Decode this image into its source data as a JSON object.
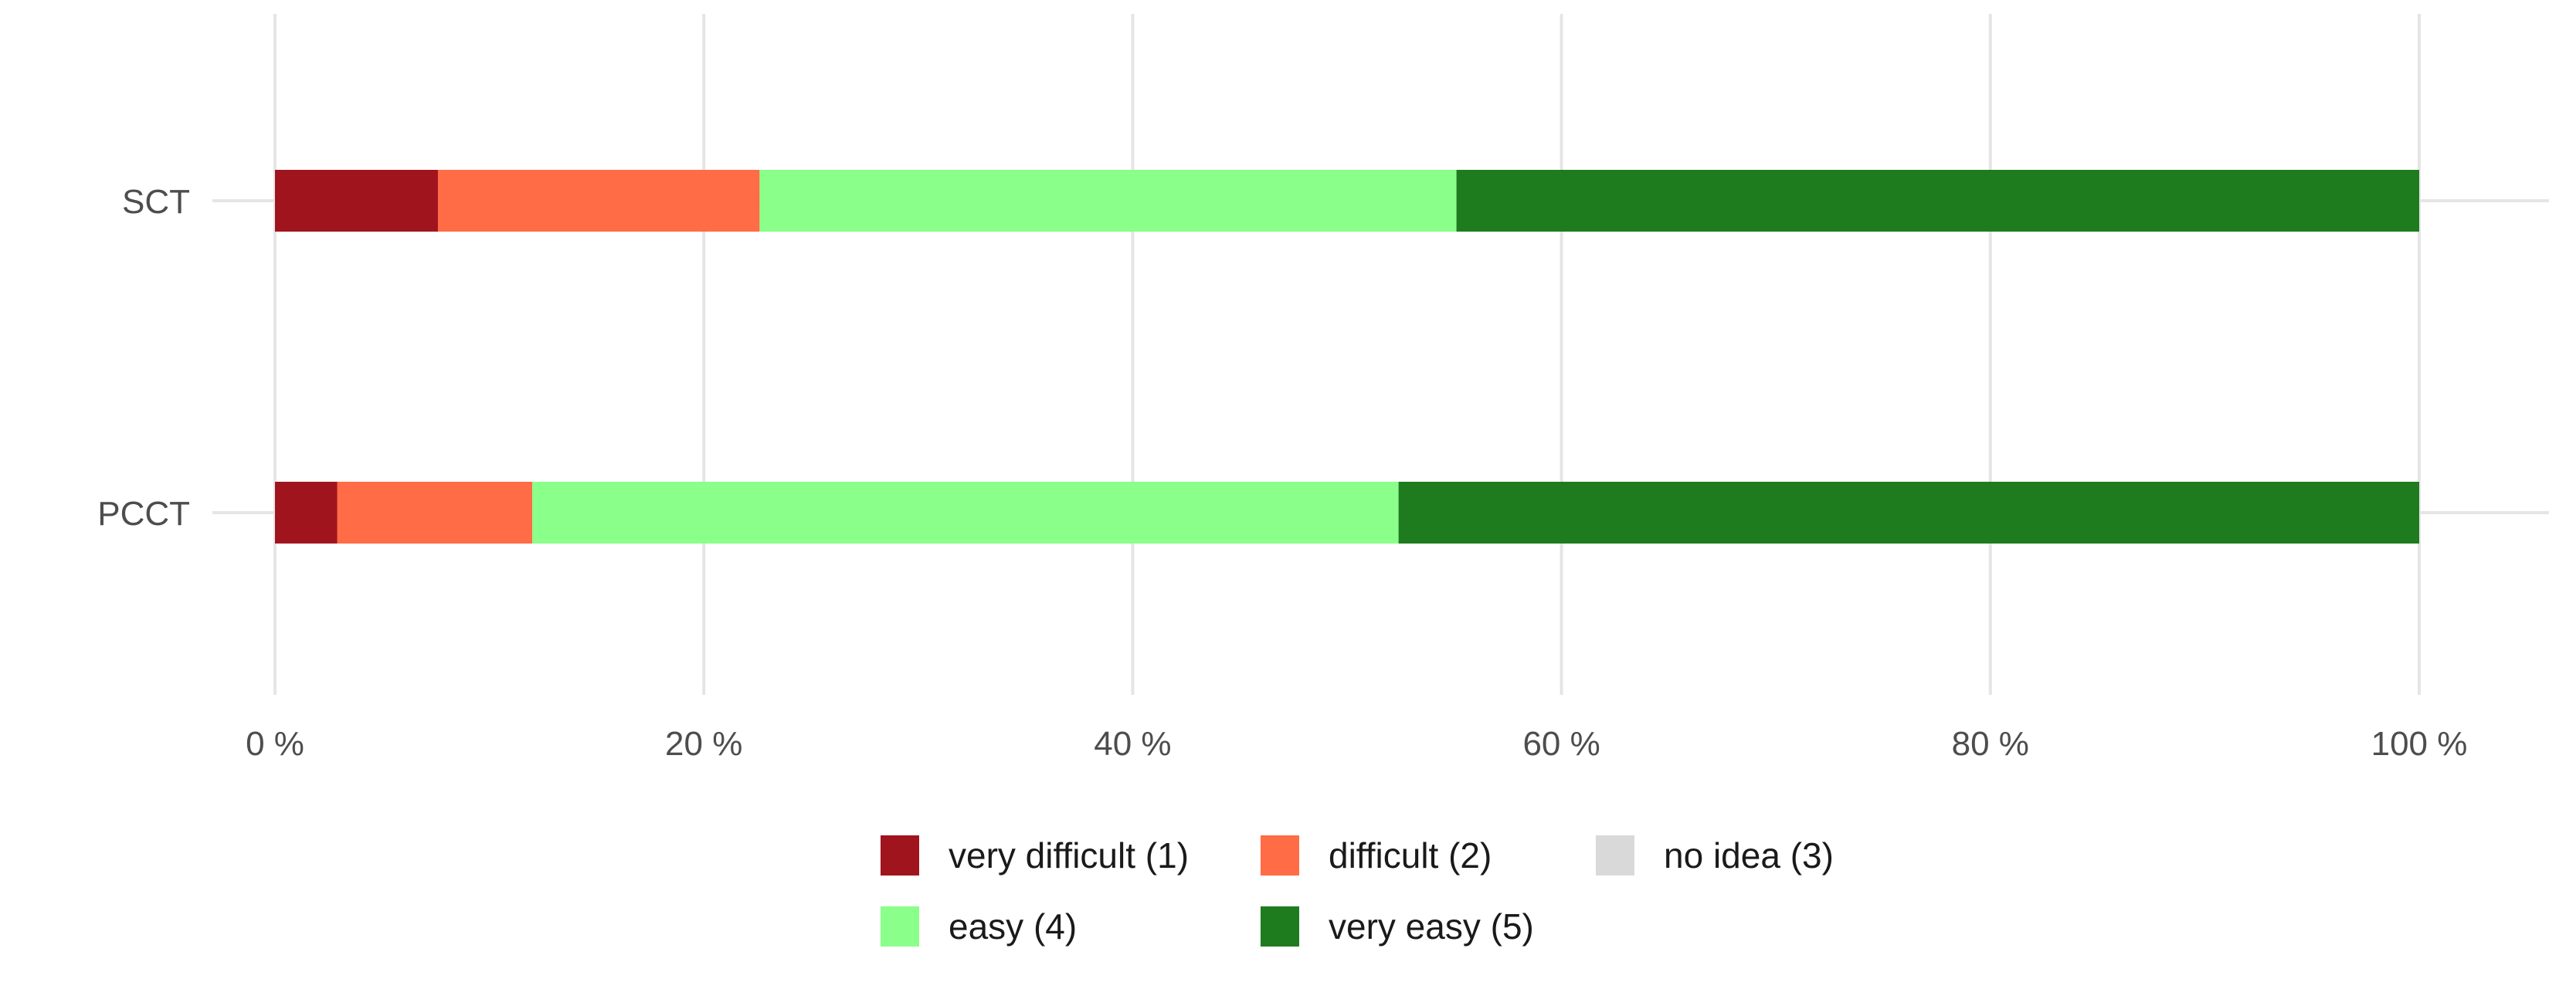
{
  "chart_data": {
    "type": "bar",
    "orientation": "horizontal",
    "stacked": true,
    "categories": [
      "SCT",
      "PCCT"
    ],
    "series": [
      {
        "name": "very difficult (1)",
        "color": "#A0141E",
        "values": [
          7.6,
          2.9
        ]
      },
      {
        "name": "difficult (2)",
        "color": "#FF6C45",
        "values": [
          15.0,
          9.1
        ]
      },
      {
        "name": "no idea (3)",
        "color": "#D9D9D9",
        "values": [
          0,
          0
        ]
      },
      {
        "name": "easy (4)",
        "color": "#8AFF8A",
        "values": [
          32.5,
          40.4
        ]
      },
      {
        "name": "very easy (5)",
        "color": "#1E7B1E",
        "values": [
          44.9,
          47.6
        ]
      }
    ],
    "xticks": [
      "0 %",
      "20 %",
      "40 %",
      "60 %",
      "80 %",
      "100 %"
    ],
    "xlim": [
      0,
      100
    ],
    "grid": true,
    "legend_position": "bottom"
  }
}
